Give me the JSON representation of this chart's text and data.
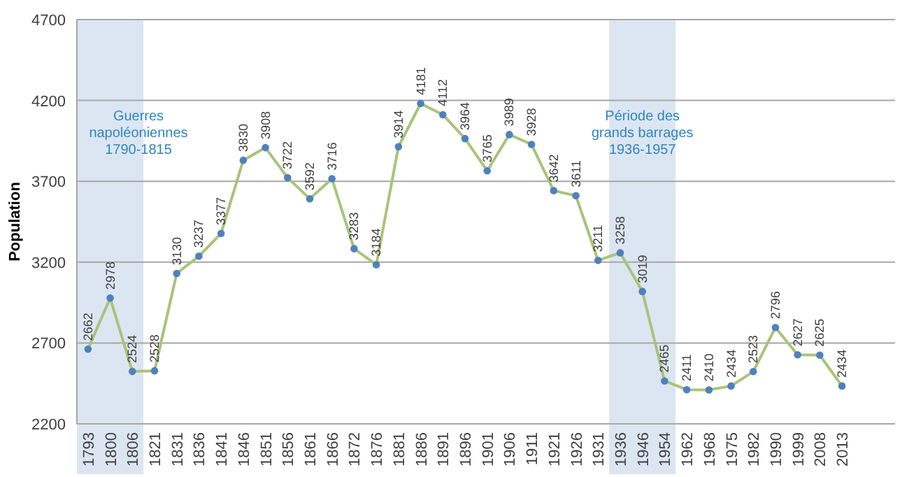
{
  "chart_data": {
    "type": "line",
    "ylabel": "Population",
    "categories": [
      "1793",
      "1800",
      "1806",
      "1821",
      "1831",
      "1836",
      "1841",
      "1846",
      "1851",
      "1856",
      "1861",
      "1866",
      "1872",
      "1876",
      "1881",
      "1886",
      "1891",
      "1896",
      "1901",
      "1906",
      "1911",
      "1921",
      "1926",
      "1931",
      "1936",
      "1946",
      "1954",
      "1962",
      "1968",
      "1975",
      "1982",
      "1990",
      "1999",
      "2008",
      "2013"
    ],
    "series": [
      {
        "color": "#a8c47a",
        "values": [
          2662,
          2978,
          2524,
          2528,
          3130,
          3237,
          3377,
          3830,
          3908,
          3722,
          3592,
          3716,
          3283,
          3184,
          3914,
          4181,
          4112,
          3964,
          3765,
          3989,
          3928,
          3642,
          3611,
          3211,
          3258,
          3019,
          2465,
          2411,
          2410,
          2434,
          2523,
          2796,
          2627,
          2625,
          2434
        ]
      }
    ],
    "ylim": [
      2200,
      4700
    ],
    "yticks": [
      2200,
      2700,
      3200,
      3700,
      4200,
      4700
    ],
    "grid": "y",
    "marker": "circle",
    "data_labels": true,
    "bands": [
      {
        "axis": "x",
        "from": "1793",
        "to": "1806",
        "label": "Guerres\nnapoléoniennes\n1790-1815",
        "color": "#dce6f2"
      },
      {
        "axis": "x",
        "from": "1936",
        "to": "1954",
        "label": "Période des\ngrands barrages\n1936-1957",
        "color": "#dce6f2"
      }
    ]
  }
}
